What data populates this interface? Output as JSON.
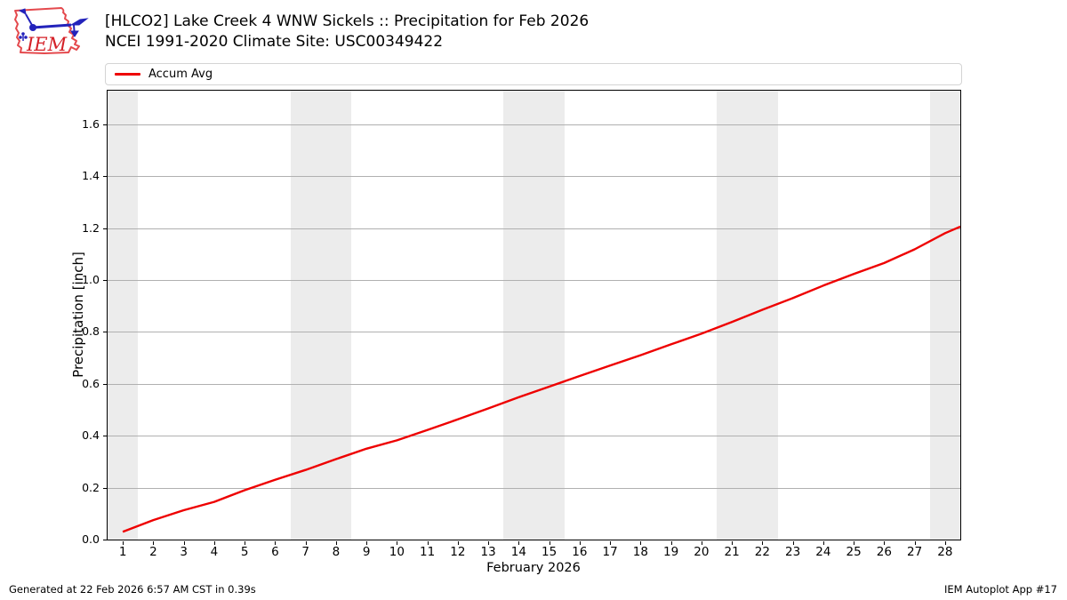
{
  "header": {
    "title_line1": "[HLCO2] Lake Creek 4 WNW Sickels :: Precipitation for Feb 2026",
    "title_line2": "NCEI 1991-2020 Climate Site: USC00349422",
    "logo_text": "IEM"
  },
  "legend": {
    "items": [
      {
        "label": "Accum Avg",
        "color": "#ee0000"
      }
    ]
  },
  "chart_data": {
    "type": "line",
    "title": "[HLCO2] Lake Creek 4 WNW Sickels :: Precipitation for Feb 2026",
    "subtitle": "NCEI 1991-2020 Climate Site: USC00349422",
    "xlabel": "February 2026",
    "ylabel": "Precipitation [inch]",
    "xlim": [
      0.5,
      28.5
    ],
    "ylim": [
      0,
      1.729
    ],
    "grid": "horizontal",
    "legend_position": "top",
    "xticks": [
      "1",
      "2",
      "3",
      "4",
      "5",
      "6",
      "7",
      "8",
      "9",
      "10",
      "11",
      "12",
      "13",
      "14",
      "15",
      "16",
      "17",
      "18",
      "19",
      "20",
      "21",
      "22",
      "23",
      "24",
      "25",
      "26",
      "27",
      "28"
    ],
    "yticks": [
      "0.0",
      "0.2",
      "0.4",
      "0.6",
      "0.8",
      "1.0",
      "1.2",
      "1.4",
      "1.6"
    ],
    "ytick_values": [
      0.0,
      0.2,
      0.4,
      0.6,
      0.8,
      1.0,
      1.2,
      1.4,
      1.6
    ],
    "weekend_bands": [
      [
        0.5,
        1.5
      ],
      [
        6.5,
        8.5
      ],
      [
        13.5,
        15.5
      ],
      [
        20.5,
        22.5
      ],
      [
        27.5,
        28.5
      ]
    ],
    "band_color": "#ececec",
    "grid_color": "#b0b0b0",
    "series": [
      {
        "name": "Accum Avg",
        "color": "#ee0000",
        "x": [
          1,
          2,
          3,
          4,
          5,
          6,
          7,
          8,
          9,
          10,
          11,
          12,
          13,
          14,
          15,
          16,
          17,
          18,
          19,
          20,
          21,
          22,
          23,
          24,
          25,
          26,
          27,
          28,
          28.5
        ],
        "values": [
          0.03,
          0.075,
          0.113,
          0.145,
          0.19,
          0.23,
          0.268,
          0.31,
          0.35,
          0.382,
          0.422,
          0.463,
          0.505,
          0.548,
          0.589,
          0.63,
          0.67,
          0.71,
          0.752,
          0.793,
          0.838,
          0.885,
          0.93,
          0.978,
          1.023,
          1.065,
          1.118,
          1.18,
          1.205
        ]
      }
    ]
  },
  "footer": {
    "left": "Generated at 22 Feb 2026 6:57 AM CST in 0.39s",
    "right": "IEM Autoplot App #17"
  }
}
